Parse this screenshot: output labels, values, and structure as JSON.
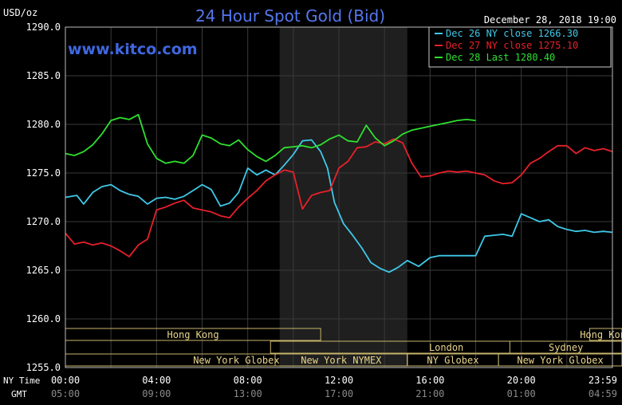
{
  "chart_data": {
    "type": "line",
    "title": "24 Hour Spot Gold (Bid)",
    "watermark": "www.kitco.com",
    "timestamp": "December 28, 2018 19:00",
    "ylabel": "USD/oz",
    "ylim": [
      1255,
      1290
    ],
    "y_ticks": [
      "1290.0",
      "1285.0",
      "1280.0",
      "1275.0",
      "1270.0",
      "1265.0",
      "1260.0",
      "1255.0"
    ],
    "xlim": [
      0,
      24
    ],
    "x_row_labels": {
      "ny": "NY Time",
      "gmt": "GMT"
    },
    "x_ticks_ny": [
      "00:00",
      "04:00",
      "08:00",
      "12:00",
      "16:00",
      "20:00",
      "23:59"
    ],
    "x_ticks_gmt": [
      "05:00",
      "09:00",
      "13:00",
      "17:00",
      "21:00",
      "01:00",
      "04:59"
    ],
    "grid": true,
    "legend_position": "top-right",
    "highlight_range_hours": [
      9.4,
      15
    ],
    "sessions": [
      {
        "label": "Hong Kong",
        "start": 0,
        "end": 11.2,
        "row": 0
      },
      {
        "label": "Hong Kong",
        "start": 23.0,
        "end": 28.5,
        "row": 0
      },
      {
        "label": "London",
        "start": 9.0,
        "end": 26.4,
        "row": 1
      },
      {
        "label": "Sydney",
        "start": 19.5,
        "end": 27.5,
        "row": 1
      },
      {
        "label": "New York Globex",
        "start": 0,
        "end": 15.0,
        "row": 2
      },
      {
        "label": "New York NYMEX",
        "start": 9.2,
        "end": 15.0,
        "row": 2
      },
      {
        "label": "NY Globex",
        "start": 15.0,
        "end": 19.0,
        "row": 2
      },
      {
        "label": "New York Globex",
        "start": 19.0,
        "end": 28.5,
        "row": 2
      }
    ],
    "series": [
      {
        "name": "Dec 26 NY close 1266.30",
        "color": "#3fc8e8",
        "x": [
          0,
          0.5,
          0.8,
          1.2,
          1.6,
          2.0,
          2.4,
          2.8,
          3.2,
          3.6,
          4.0,
          4.4,
          4.8,
          5.2,
          5.6,
          6.0,
          6.4,
          6.8,
          7.2,
          7.6,
          8.0,
          8.4,
          8.8,
          9.2,
          9.6,
          10.0,
          10.4,
          10.8,
          11.2,
          11.5,
          11.8,
          12.2,
          12.6,
          13.0,
          13.4,
          13.8,
          14.2,
          14.6,
          15.0,
          15.5,
          16.0,
          16.4,
          16.8,
          17.2,
          17.6,
          18.0,
          18.4,
          18.8,
          19.2,
          19.6,
          20.0,
          20.4,
          20.8,
          21.2,
          21.6,
          22.0,
          22.4,
          22.8,
          23.2,
          23.6,
          24.0
        ],
        "values": [
          1272.5,
          1272.7,
          1271.8,
          1273.0,
          1273.6,
          1273.8,
          1273.2,
          1272.8,
          1272.6,
          1271.8,
          1272.4,
          1272.5,
          1272.3,
          1272.6,
          1273.2,
          1273.8,
          1273.3,
          1271.6,
          1271.9,
          1273.0,
          1275.5,
          1274.8,
          1275.3,
          1274.8,
          1275.8,
          1276.9,
          1278.3,
          1278.4,
          1277.2,
          1275.5,
          1272.0,
          1269.8,
          1268.6,
          1267.3,
          1265.8,
          1265.2,
          1264.8,
          1265.3,
          1266.0,
          1265.4,
          1266.3,
          1266.5,
          1266.5,
          1266.5,
          1266.5,
          1266.5,
          1268.5,
          1268.6,
          1268.7,
          1268.5,
          1270.8,
          1270.4,
          1270.0,
          1270.2,
          1269.5,
          1269.2,
          1269.0,
          1269.1,
          1268.9,
          1269.0,
          1268.9
        ]
      },
      {
        "name": "Dec 27 NY close 1275.10",
        "color": "#e8202a",
        "x": [
          0,
          0.4,
          0.8,
          1.2,
          1.6,
          2.0,
          2.4,
          2.8,
          3.2,
          3.6,
          4.0,
          4.4,
          4.8,
          5.2,
          5.6,
          6.0,
          6.4,
          6.8,
          7.2,
          7.6,
          8.0,
          8.4,
          8.8,
          9.2,
          9.6,
          10.0,
          10.4,
          10.8,
          11.2,
          11.6,
          12.0,
          12.4,
          12.8,
          13.2,
          13.6,
          14.0,
          14.4,
          14.8,
          15.2,
          15.6,
          16.0,
          16.4,
          16.8,
          17.2,
          17.6,
          18.0,
          18.4,
          18.8,
          19.2,
          19.6,
          20.0,
          20.4,
          20.8,
          21.2,
          21.6,
          22.0,
          22.4,
          22.8,
          23.2,
          23.6,
          24.0
        ],
        "values": [
          1268.8,
          1267.7,
          1267.9,
          1267.6,
          1267.8,
          1267.5,
          1267.0,
          1266.4,
          1267.6,
          1268.2,
          1271.2,
          1271.5,
          1271.9,
          1272.2,
          1271.4,
          1271.2,
          1271.0,
          1270.6,
          1270.4,
          1271.5,
          1272.4,
          1273.2,
          1274.2,
          1274.8,
          1275.3,
          1275.1,
          1271.3,
          1272.7,
          1273.0,
          1273.2,
          1275.5,
          1276.2,
          1277.6,
          1277.7,
          1278.2,
          1278.0,
          1278.5,
          1278.1,
          1276.0,
          1274.6,
          1274.7,
          1275.0,
          1275.2,
          1275.1,
          1275.2,
          1275.0,
          1274.8,
          1274.2,
          1273.9,
          1274.0,
          1274.8,
          1276.0,
          1276.5,
          1277.2,
          1277.8,
          1277.8,
          1277.0,
          1277.6,
          1277.3,
          1277.5,
          1277.2
        ]
      },
      {
        "name": "Dec 28 Last 1280.40",
        "color": "#2fe02f",
        "x": [
          0,
          0.4,
          0.8,
          1.2,
          1.6,
          2.0,
          2.4,
          2.8,
          3.2,
          3.6,
          4.0,
          4.4,
          4.8,
          5.2,
          5.6,
          6.0,
          6.4,
          6.8,
          7.2,
          7.6,
          8.0,
          8.4,
          8.8,
          9.2,
          9.6,
          10.0,
          10.4,
          10.8,
          11.2,
          11.6,
          12.0,
          12.4,
          12.8,
          13.2,
          13.6,
          14.0,
          14.4,
          14.8,
          15.2,
          15.6,
          16.0,
          16.4,
          16.8,
          17.2,
          17.6,
          18.0
        ],
        "values": [
          1277.0,
          1276.8,
          1277.2,
          1277.9,
          1279.0,
          1280.4,
          1280.7,
          1280.5,
          1281.0,
          1278.0,
          1276.5,
          1276.0,
          1276.2,
          1276.0,
          1276.8,
          1278.9,
          1278.6,
          1278.0,
          1277.8,
          1278.4,
          1277.4,
          1276.7,
          1276.2,
          1276.8,
          1277.6,
          1277.7,
          1277.8,
          1277.6,
          1277.9,
          1278.5,
          1278.9,
          1278.3,
          1278.2,
          1279.9,
          1278.6,
          1277.8,
          1278.3,
          1279.0,
          1279.4,
          1279.6,
          1279.8,
          1280.0,
          1280.2,
          1280.4,
          1280.5,
          1280.4
        ]
      }
    ]
  }
}
